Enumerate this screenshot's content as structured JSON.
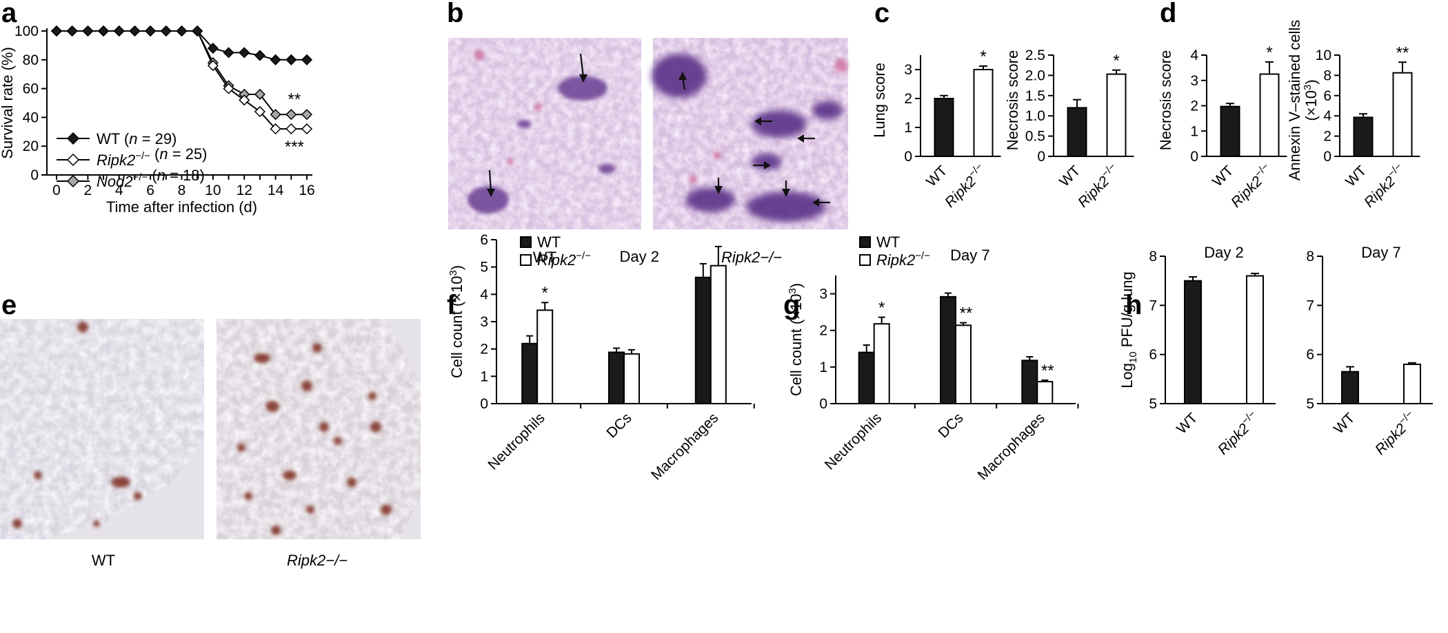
{
  "colors": {
    "wt": "#1a1a1a",
    "ripk2": "#ffffff",
    "nod2": "#a6a6a6",
    "axis": "#000000",
    "he_bg": "#dcc8e4",
    "he_lesion": "#6a3f93",
    "ihc_bg": "#dad6e0",
    "ihc_spot": "#7a2a1a"
  },
  "panel_letters": [
    "a",
    "b",
    "c",
    "d",
    "e",
    "f",
    "g",
    "h"
  ],
  "histology": {
    "b": {
      "left_caption": "WT",
      "right_caption": "Ripk2−/−"
    },
    "e": {
      "left_caption": "WT",
      "right_caption": "Ripk2−/−"
    }
  },
  "chart_data": [
    {
      "panel": "a",
      "type": "line",
      "xlabel": "Time after infection (d)",
      "ylabel": "Survival rate (%)",
      "xlim": [
        0,
        16
      ],
      "ylim": [
        0,
        100
      ],
      "xticks": [
        0,
        2,
        4,
        6,
        8,
        10,
        12,
        14,
        16
      ],
      "yticks": [
        0,
        20,
        40,
        60,
        80,
        100
      ],
      "x": [
        0,
        1,
        2,
        3,
        4,
        5,
        6,
        7,
        8,
        9,
        10,
        11,
        12,
        13,
        14,
        15,
        16
      ],
      "series": [
        {
          "name": "WT",
          "n": "29",
          "marker": "filled",
          "values": [
            100,
            100,
            100,
            100,
            100,
            100,
            100,
            100,
            100,
            100,
            88,
            85,
            85,
            83,
            80,
            80,
            80
          ]
        },
        {
          "name": "Ripk2−/−",
          "n": "25",
          "marker": "open",
          "values": [
            100,
            100,
            100,
            100,
            100,
            100,
            100,
            100,
            100,
            100,
            76,
            60,
            52,
            44,
            32,
            32,
            32
          ],
          "stars": "***"
        },
        {
          "name": "Nod2−/−",
          "n": "18",
          "marker": "gray",
          "values": [
            100,
            100,
            100,
            100,
            100,
            100,
            100,
            100,
            100,
            100,
            78,
            62,
            56,
            56,
            42,
            42,
            42
          ],
          "stars": "**"
        }
      ],
      "legend": {
        "placement": "bottom-left",
        "labels": [
          "WT (n = 29)",
          "Ripk2−/− (n = 25)",
          "Nod2−/− (n = 18)"
        ]
      }
    },
    {
      "panel": "c1",
      "type": "bar",
      "ylabel": "Lung score",
      "categories": [
        "WT",
        "Ripk2−/−"
      ],
      "values": [
        2.0,
        3.0
      ],
      "errors": [
        0.1,
        0.12
      ],
      "ylim": [
        0,
        3.5
      ],
      "yticks": [
        "0",
        "1",
        "2",
        "3"
      ],
      "yticks_v": [
        0,
        1,
        2,
        3
      ],
      "stars": [
        "",
        "*"
      ]
    },
    {
      "panel": "c2",
      "type": "bar",
      "ylabel": "Necrosis score",
      "categories": [
        "WT",
        "Ripk2−/−"
      ],
      "values": [
        1.2,
        2.03
      ],
      "errors": [
        0.2,
        0.1
      ],
      "ylim": [
        0,
        2.5
      ],
      "yticks": [
        "0",
        "0.5",
        "1.0",
        "1.5",
        "2.0",
        "2.5"
      ],
      "yticks_v": [
        0,
        0.5,
        1,
        1.5,
        2,
        2.5
      ],
      "stars": [
        "",
        "*"
      ]
    },
    {
      "panel": "d1",
      "type": "bar",
      "ylabel": "Necrosis score",
      "categories": [
        "WT",
        "Ripk2−/−"
      ],
      "values": [
        1.97,
        3.25
      ],
      "errors": [
        0.12,
        0.48
      ],
      "ylim": [
        0,
        4
      ],
      "yticks": [
        "0",
        "1",
        "2",
        "3",
        "4"
      ],
      "yticks_v": [
        0,
        1,
        2,
        3,
        4
      ],
      "stars": [
        "",
        "*"
      ]
    },
    {
      "panel": "d2",
      "type": "bar",
      "ylabel": "Annexin V–stained cells",
      "ylabel2": "(×10",
      "ylabel2_sup": "3",
      "ylabel2_end": ")",
      "categories": [
        "WT",
        "Ripk2−/−"
      ],
      "values": [
        3.85,
        8.25
      ],
      "errors": [
        0.35,
        1.05
      ],
      "ylim": [
        0,
        10
      ],
      "yticks": [
        "0",
        "2",
        "4",
        "6",
        "8",
        "10"
      ],
      "yticks_v": [
        0,
        2,
        4,
        6,
        8,
        10
      ],
      "stars": [
        "",
        "**"
      ]
    },
    {
      "panel": "f",
      "type": "bar",
      "title": "Day 2",
      "ylabel": "Cell count (×10",
      "ylabel_sup": "3",
      "ylabel_end": ")",
      "categories": [
        "Neutrophils",
        "DCs",
        "Macrophages"
      ],
      "series": [
        {
          "name": "WT",
          "values": [
            2.2,
            1.88,
            4.62
          ],
          "errors": [
            0.28,
            0.15,
            0.5
          ]
        },
        {
          "name": "Ripk2−/−",
          "values": [
            3.42,
            1.82,
            5.05
          ],
          "errors": [
            0.28,
            0.15,
            0.7
          ]
        }
      ],
      "stars": [
        [
          "",
          "*"
        ],
        [
          "",
          ""
        ],
        [
          "",
          ""
        ]
      ],
      "ylim": [
        0,
        6
      ],
      "yticks": [
        "0",
        "1",
        "2",
        "3",
        "4",
        "5",
        "6"
      ],
      "yticks_v": [
        0,
        1,
        2,
        3,
        4,
        5,
        6
      ],
      "legend": {
        "placement": "top-left",
        "labels": [
          "WT",
          "Ripk2−/−"
        ]
      }
    },
    {
      "panel": "g",
      "type": "bar",
      "title": "Day 7",
      "ylabel": "Cell count (×10",
      "ylabel_sup": "3",
      "ylabel_end": ")",
      "categories": [
        "Neutrophils",
        "DCs",
        "Macrophages"
      ],
      "series": [
        {
          "name": "WT",
          "values": [
            1.4,
            2.92,
            1.18
          ],
          "errors": [
            0.2,
            0.1,
            0.1
          ]
        },
        {
          "name": "Ripk2−/−",
          "values": [
            2.18,
            2.14,
            0.6
          ],
          "errors": [
            0.18,
            0.07,
            0.04
          ]
        }
      ],
      "stars": [
        [
          "",
          "*"
        ],
        [
          "",
          "**"
        ],
        [
          "",
          "**"
        ]
      ],
      "ylim": [
        0,
        3.5
      ],
      "yticks": [
        "0",
        "1",
        "2",
        "3"
      ],
      "yticks_v": [
        0,
        1,
        2,
        3
      ],
      "legend": {
        "placement": "top-left",
        "labels": [
          "WT",
          "Ripk2−/−"
        ]
      }
    },
    {
      "panel": "h1",
      "type": "bar",
      "title": "Day 2",
      "ylabel": "Log",
      "ylabel_sub": "10",
      "ylabel_end": " PFU/g lung",
      "categories": [
        "WT",
        "Ripk2−/−"
      ],
      "values": [
        7.5,
        7.6
      ],
      "errors": [
        0.08,
        0.05
      ],
      "ylim": [
        5,
        8
      ],
      "yticks": [
        "5",
        "6",
        "7",
        "8"
      ],
      "yticks_v": [
        5,
        6,
        7,
        8
      ]
    },
    {
      "panel": "h2",
      "type": "bar",
      "title": "Day 7",
      "categories": [
        "WT",
        "Ripk2−/−"
      ],
      "values": [
        5.65,
        5.8
      ],
      "errors": [
        0.1,
        0.03
      ],
      "ylim": [
        5,
        8
      ],
      "yticks": [
        "5",
        "6",
        "7",
        "8"
      ],
      "yticks_v": [
        5,
        6,
        7,
        8
      ]
    }
  ]
}
